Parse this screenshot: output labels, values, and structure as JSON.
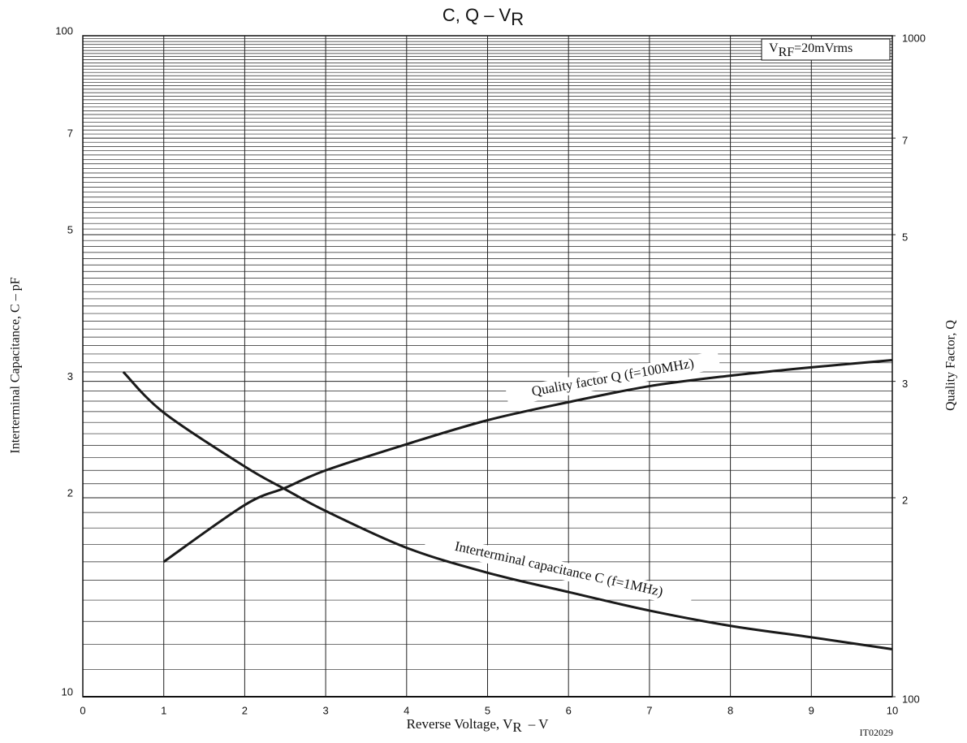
{
  "chart_data": {
    "type": "line",
    "title": "C, Q – V",
    "title_sub": "R",
    "x_label": "Reverse Voltage, V",
    "x_label_sub": "R",
    "x_label_unit": "–  V",
    "y_label": "Interterminal Capacitance, C – pF",
    "y2_label": "Quality Factor, Q",
    "annotation": "V",
    "annotation_sub": "RF",
    "annotation_rest": "=20mVrms",
    "code": "IT02029",
    "xlim": [
      0,
      10
    ],
    "xticks": [
      0,
      1,
      2,
      3,
      4,
      5,
      6,
      7,
      8,
      9,
      10
    ],
    "ylim": [
      10,
      100
    ],
    "ylog": true,
    "yticks": [
      10,
      {
        "value": 20,
        "label": "2"
      },
      {
        "value": 30,
        "label": "3"
      },
      {
        "value": 50,
        "label": "5"
      },
      {
        "value": 70,
        "label": "7"
      },
      100
    ],
    "y2lim": [
      100,
      1000
    ],
    "y2ticks": [
      100,
      {
        "value": 200,
        "label": "2"
      },
      {
        "value": 300,
        "label": "3"
      },
      {
        "value": 500,
        "label": "5"
      },
      {
        "value": 700,
        "label": "7"
      },
      1000
    ],
    "minor_yticks": [
      11,
      12,
      13,
      14,
      15,
      16,
      17,
      18,
      19,
      21,
      22,
      23,
      24,
      25,
      26,
      27,
      28,
      29,
      31,
      32,
      33,
      34,
      35,
      36,
      37,
      38,
      39,
      40,
      41,
      42,
      43,
      44,
      45,
      46,
      47,
      48,
      49,
      51,
      52,
      53,
      54,
      55,
      56,
      57,
      58,
      59,
      60,
      61,
      62,
      63,
      64,
      65,
      66,
      67,
      68,
      69,
      71,
      72,
      73,
      74,
      75,
      76,
      77,
      78,
      79,
      80,
      81,
      82,
      83,
      84,
      85,
      86,
      87,
      88,
      89,
      90,
      91,
      92,
      93,
      94,
      95,
      96,
      97,
      98,
      99
    ],
    "grid": true,
    "series": [
      {
        "name": "Interterminal capacitance C (f=1MHz)",
        "color": "#1a1a1a",
        "x": [
          0.5,
          1,
          2,
          2.5,
          3,
          4,
          5,
          6,
          7,
          8,
          9,
          10
        ],
        "values": [
          31.0,
          26.9,
          22.3,
          20.6,
          19.1,
          16.8,
          15.4,
          14.4,
          13.5,
          12.8,
          12.3,
          11.8
        ]
      },
      {
        "name": "Quality factor Q (f=100MHz)",
        "color": "#1a1a1a",
        "axis": "y2",
        "x": [
          1,
          2,
          2.5,
          3,
          4,
          5,
          6,
          7,
          8,
          9,
          10
        ],
        "values": [
          160,
          195,
          207,
          220,
          241,
          262,
          279,
          295,
          306,
          315,
          323
        ]
      }
    ]
  }
}
